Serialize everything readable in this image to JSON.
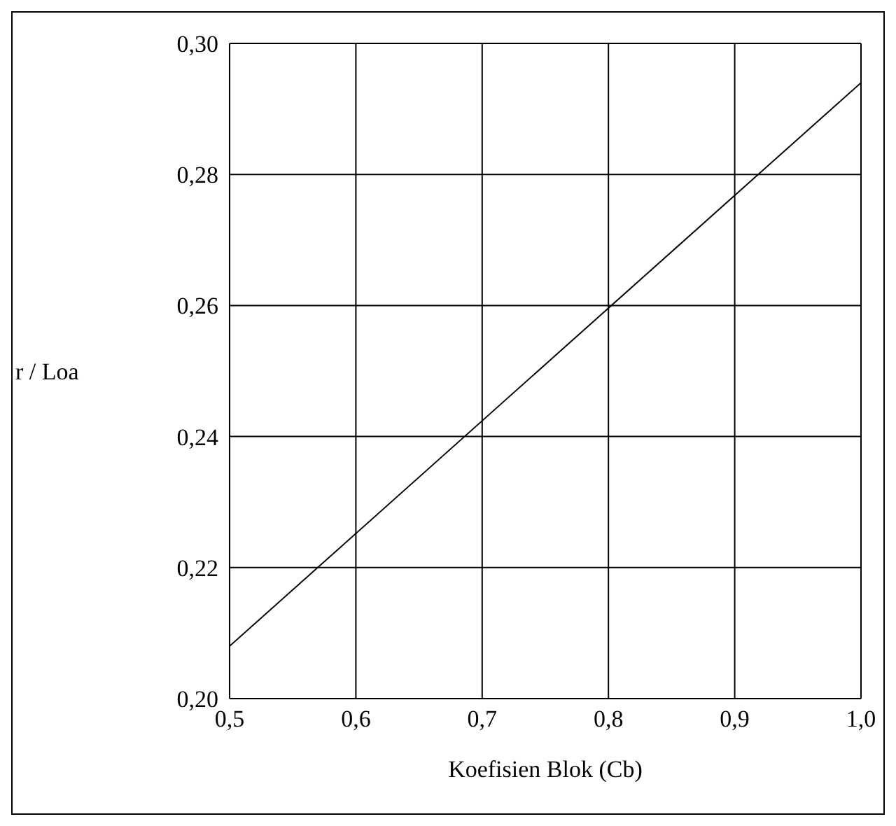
{
  "chart_data": {
    "type": "line",
    "xlabel": "Koefisien Blok (Cb)",
    "ylabel": "r / Loa",
    "x": [
      0.5,
      1.0
    ],
    "series": [
      {
        "color": "#000000",
        "values": [
          0.208,
          0.294
        ]
      }
    ],
    "xlim": [
      0.5,
      1.0
    ],
    "xticks": [
      {
        "value": 0.5,
        "label": "0,5"
      },
      {
        "value": 0.6,
        "label": "0,6"
      },
      {
        "value": 0.7,
        "label": "0,7"
      },
      {
        "value": 0.8,
        "label": "0,8"
      },
      {
        "value": 0.9,
        "label": "0,9"
      },
      {
        "value": 1.0,
        "label": "1,0"
      }
    ],
    "ylim": [
      0.2,
      0.3
    ],
    "yticks": [
      {
        "value": 0.2,
        "label": "0,20"
      },
      {
        "value": 0.22,
        "label": "0,22"
      },
      {
        "value": 0.24,
        "label": "0,24"
      },
      {
        "value": 0.26,
        "label": "0,26"
      },
      {
        "value": 0.28,
        "label": "0,28"
      },
      {
        "value": 0.3,
        "label": "0,30"
      }
    ],
    "grid": true,
    "marker": "none",
    "line_style": "solid"
  }
}
